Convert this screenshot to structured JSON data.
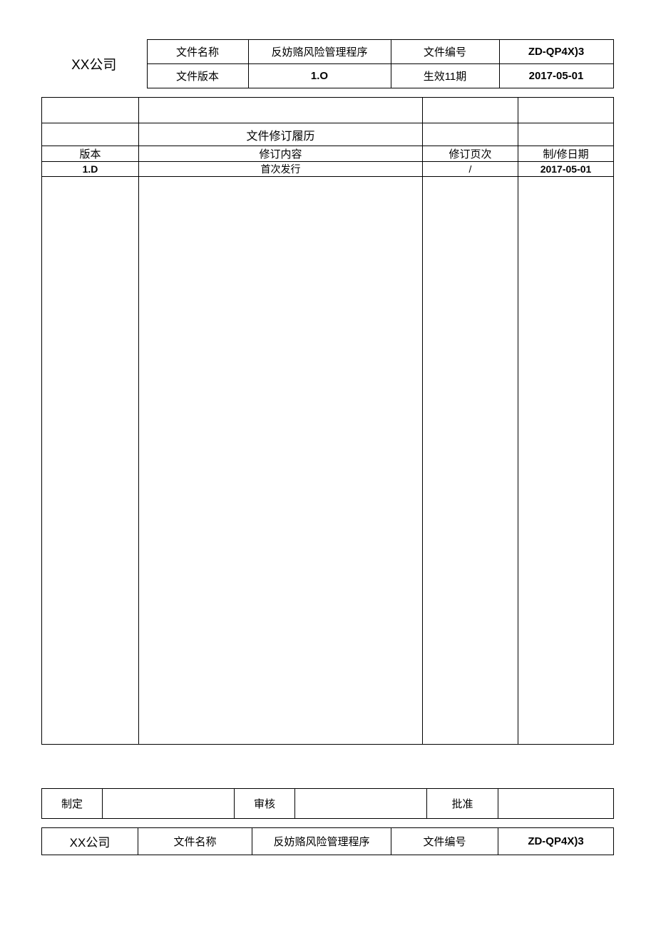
{
  "header": {
    "company": "XX公司",
    "row1": {
      "label1": "文件名称",
      "value1": "反妨赂风险管理程序",
      "label2": "文件编号",
      "value2": "ZD-QP4X)3"
    },
    "row2": {
      "label1": "文件版本",
      "value1": "1.O",
      "label2": "生效11期",
      "value2": "2017-05-01"
    }
  },
  "revision": {
    "title": "文件修订履历",
    "columns": {
      "c1": "版本",
      "c2": "修订内容",
      "c3": "修订页次",
      "c4": "制/修日期"
    },
    "rows": [
      {
        "c1": "1.D",
        "c2": "首次发行",
        "c3": "/",
        "c4": "2017-05-01"
      }
    ]
  },
  "approval": {
    "label1": "制定",
    "value1": "",
    "label2": "审核",
    "value2": "",
    "label3": "批准",
    "value3": ""
  },
  "footer": {
    "company": "XX公司",
    "label1": "文件名称",
    "value1": "反妨赂风险管理程序",
    "label2": "文件编号",
    "value2": "ZD-QP4X)3"
  },
  "styles": {
    "border_color": "#000000",
    "background_color": "#ffffff",
    "text_color": "#000000",
    "base_fontsize": 15,
    "company_fontsize": 19,
    "bold_weight": "bold"
  }
}
